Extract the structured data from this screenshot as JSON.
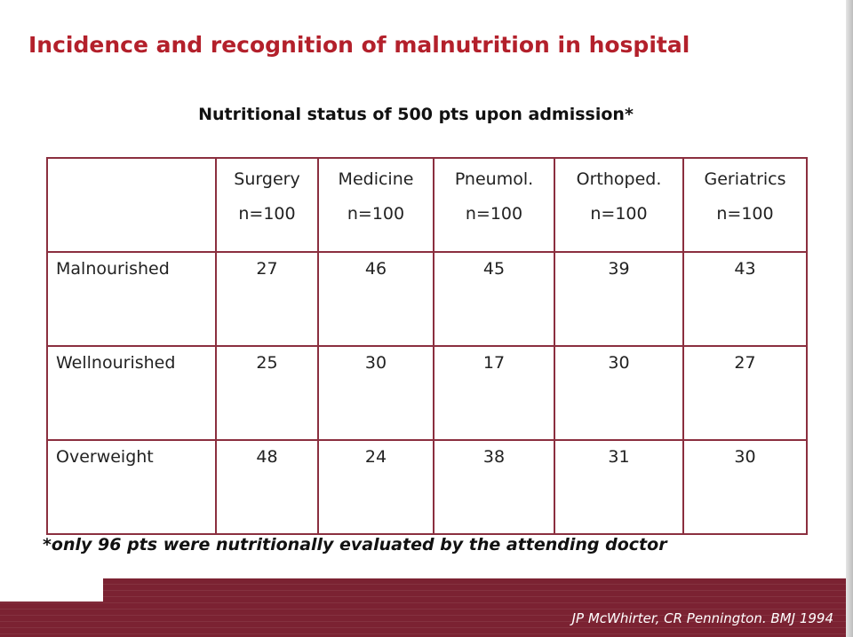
{
  "slide": {
    "title": "Incidence and recognition of malnutrition in hospital",
    "table_title": "Nutritional status of 500 pts upon admission*",
    "footnote": "*only 96 pts were nutritionally evaluated by the attending doctor",
    "citation": "JP McWhirter, CR Pennington. BMJ 1994"
  },
  "table": {
    "columns": [
      {
        "name": "Surgery",
        "n": "n=100"
      },
      {
        "name": "Medicine",
        "n": "n=100"
      },
      {
        "name": "Pneumol.",
        "n": "n=100"
      },
      {
        "name": "Orthoped.",
        "n": "n=100"
      },
      {
        "name": "Geriatrics",
        "n": "n=100"
      }
    ],
    "rows": [
      {
        "label": "Malnourished",
        "values": [
          "27",
          "46",
          "45",
          "39",
          "43"
        ]
      },
      {
        "label": "Wellnourished",
        "values": [
          "25",
          "30",
          "17",
          "30",
          "27"
        ]
      },
      {
        "label": "Overweight",
        "values": [
          "48",
          "24",
          "38",
          "31",
          "30"
        ]
      }
    ]
  },
  "colors": {
    "title": "#b3202b",
    "table_border": "#8b2f3f",
    "footer_band": "#7b2232"
  }
}
